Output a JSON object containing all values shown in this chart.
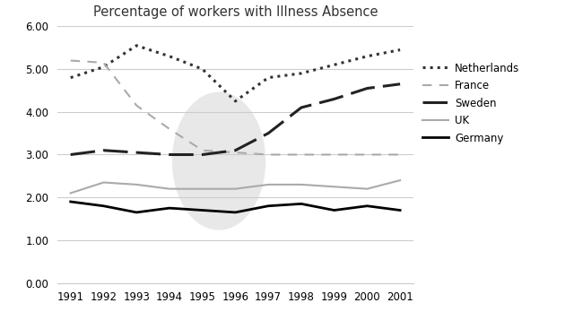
{
  "title": "Percentage of workers with Illness Absence",
  "years": [
    1991,
    1992,
    1993,
    1994,
    1995,
    1996,
    1997,
    1998,
    1999,
    2000,
    2001
  ],
  "netherlands": [
    4.8,
    5.05,
    5.55,
    5.3,
    5.0,
    4.25,
    4.8,
    4.9,
    5.1,
    5.3,
    5.45
  ],
  "france": [
    5.2,
    5.15,
    4.15,
    3.6,
    3.1,
    3.05,
    3.0,
    3.0,
    3.0,
    3.0,
    3.0
  ],
  "sweden": [
    3.0,
    3.1,
    3.05,
    3.0,
    3.0,
    3.1,
    3.5,
    4.1,
    4.3,
    4.55,
    4.65
  ],
  "uk": [
    2.1,
    2.35,
    2.3,
    2.2,
    2.2,
    2.2,
    2.3,
    2.3,
    2.25,
    2.2,
    2.4
  ],
  "germany": [
    1.9,
    1.8,
    1.65,
    1.75,
    1.7,
    1.65,
    1.8,
    1.85,
    1.7,
    1.8,
    1.7
  ],
  "ylim": [
    0.0,
    6.0
  ],
  "yticks": [
    0.0,
    1.0,
    2.0,
    3.0,
    4.0,
    5.0,
    6.0
  ],
  "background_color": "#ffffff",
  "watermark_color": "#e8e8e8",
  "netherlands_color": "#333333",
  "france_color": "#aaaaaa",
  "sweden_color": "#222222",
  "uk_color": "#aaaaaa",
  "germany_color": "#000000",
  "legend_labels": [
    "Netherlands",
    "France",
    "Sweden",
    "UK",
    "Germany"
  ],
  "figsize": [
    6.4,
    3.67
  ],
  "dpi": 100
}
